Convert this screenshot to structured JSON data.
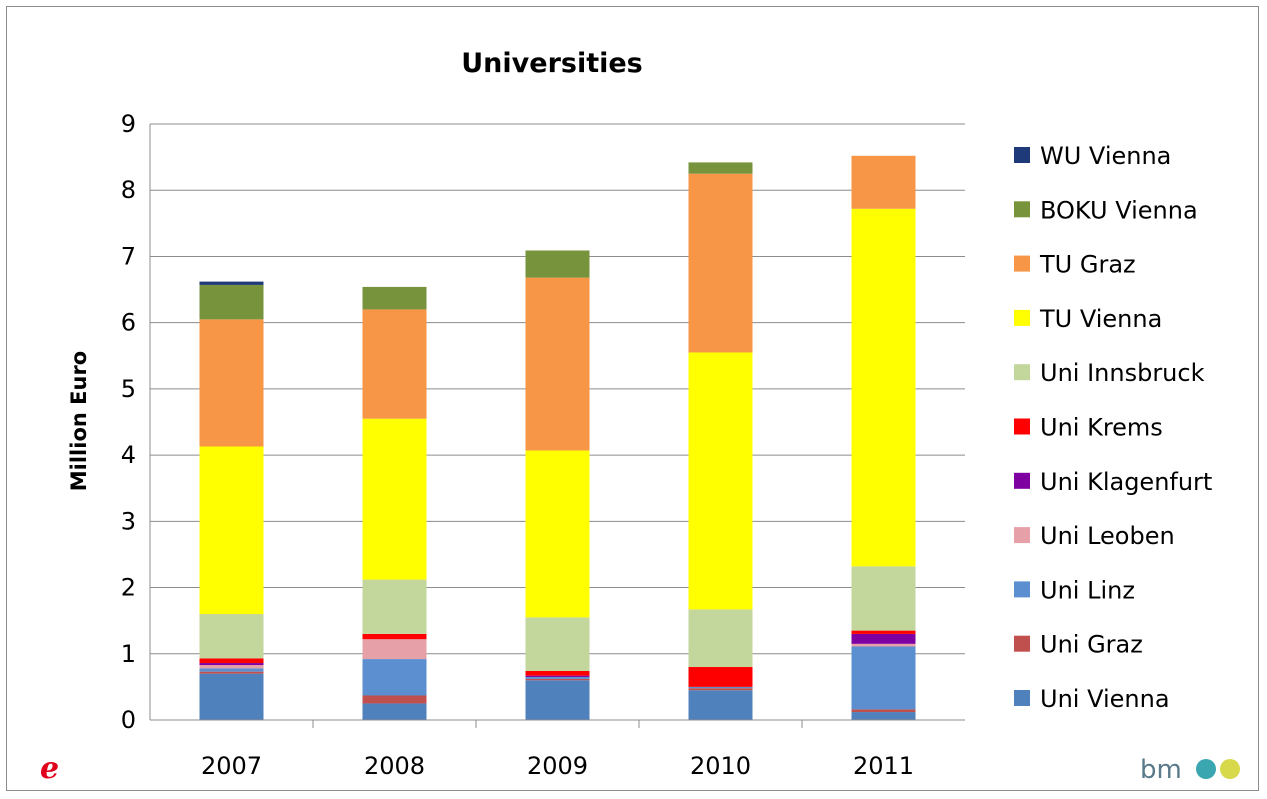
{
  "chart_data": {
    "type": "bar",
    "stacked": true,
    "title": "Universities",
    "ylabel": "Million Euro",
    "xlabel": "",
    "ylim": [
      0,
      9
    ],
    "yticks": [
      0,
      1,
      2,
      3,
      4,
      5,
      6,
      7,
      8,
      9
    ],
    "grid": true,
    "legend_position": "right",
    "categories": [
      "2007",
      "2008",
      "2009",
      "2010",
      "2011"
    ],
    "series": [
      {
        "name": "Uni Vienna",
        "color": "#4f81bd",
        "values": [
          0.7,
          0.25,
          0.6,
          0.45,
          0.12
        ]
      },
      {
        "name": "Uni Graz",
        "color": "#c0504d",
        "values": [
          0.03,
          0.12,
          0.02,
          0.03,
          0.04
        ]
      },
      {
        "name": "Uni Linz",
        "color": "#5b8fd0",
        "values": [
          0.05,
          0.55,
          0.03,
          0.02,
          0.95
        ]
      },
      {
        "name": "Uni Leoben",
        "color": "#e6a0a8",
        "values": [
          0.05,
          0.3,
          0.0,
          0.0,
          0.04
        ]
      },
      {
        "name": "Uni Klagenfurt",
        "color": "#7f00a0",
        "values": [
          0.03,
          0.0,
          0.02,
          0.0,
          0.15
        ]
      },
      {
        "name": "Uni Krems",
        "color": "#ff0000",
        "values": [
          0.07,
          0.08,
          0.07,
          0.3,
          0.05
        ]
      },
      {
        "name": "Uni Innsbruck",
        "color": "#c3d69b",
        "values": [
          0.67,
          0.82,
          0.81,
          0.87,
          0.97
        ]
      },
      {
        "name": "TU Vienna",
        "color": "#ffff00",
        "values": [
          2.53,
          2.43,
          2.52,
          3.88,
          5.4
        ]
      },
      {
        "name": "TU Graz",
        "color": "#f79646",
        "values": [
          1.92,
          1.65,
          2.61,
          2.7,
          0.8
        ]
      },
      {
        "name": "BOKU Vienna",
        "color": "#77933c",
        "values": [
          0.52,
          0.34,
          0.41,
          0.17,
          0.0
        ]
      },
      {
        "name": "WU Vienna",
        "color": "#1f3a78",
        "values": [
          0.05,
          0.0,
          0.0,
          0.0,
          0.0
        ]
      }
    ]
  },
  "logos": {
    "left": "e",
    "right_text": "bm"
  }
}
